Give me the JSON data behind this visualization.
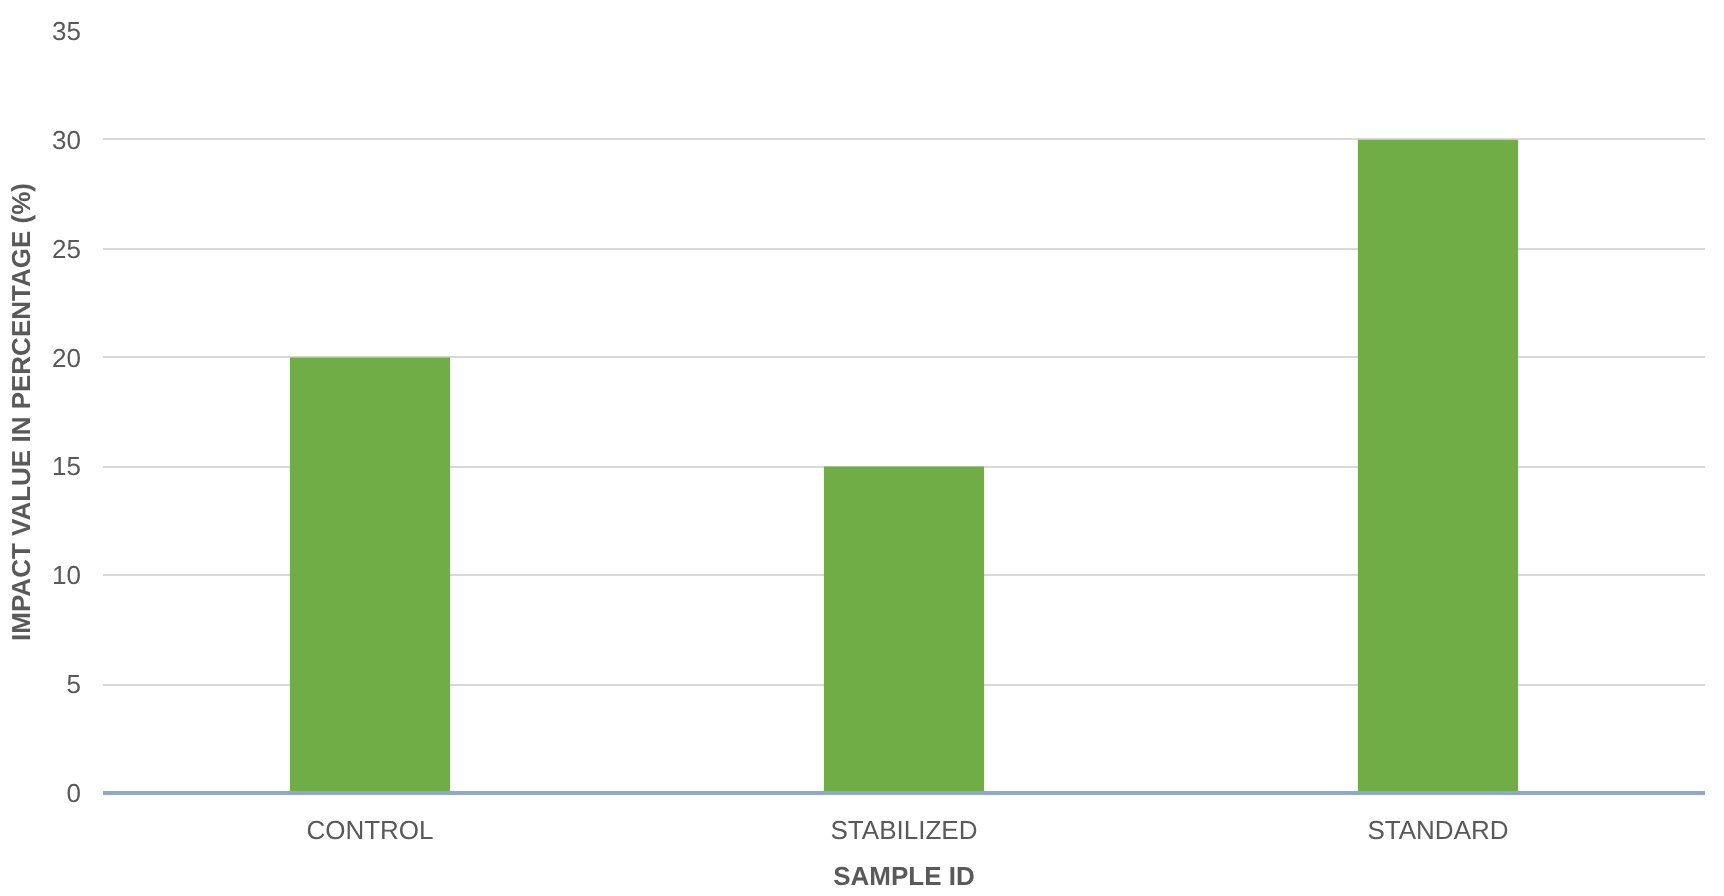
{
  "chart_data": {
    "type": "bar",
    "xlabel": "SAMPLE ID",
    "ylabel": "IMPACT VALUE IN PERCENTAGE (%)",
    "categories": [
      "CONTROL",
      "STABILIZED",
      "STANDARD"
    ],
    "values": [
      20,
      15,
      30
    ],
    "color": "#70ad47",
    "ylim": [
      0,
      35
    ],
    "yticks": [
      0,
      5,
      10,
      15,
      20,
      25,
      30,
      35
    ],
    "grid": "y"
  }
}
